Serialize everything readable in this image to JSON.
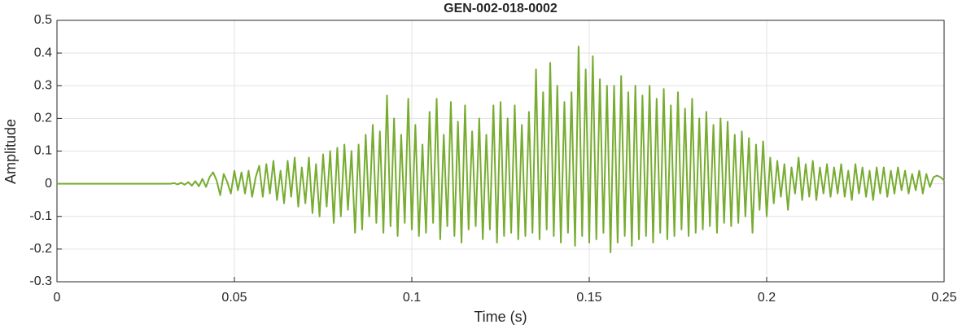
{
  "chart_data": {
    "type": "line",
    "title": "GEN-002-018-0002",
    "xlabel": "Time (s)",
    "ylabel": "Amplitude",
    "x": [
      0,
      0.001,
      0.002,
      0.003,
      0.004,
      0.005,
      0.006,
      0.007,
      0.008,
      0.009,
      0.01,
      0.011,
      0.012,
      0.013,
      0.014,
      0.015,
      0.016,
      0.017,
      0.018,
      0.019,
      0.02,
      0.021,
      0.022,
      0.023,
      0.024,
      0.025,
      0.026,
      0.027,
      0.028,
      0.029,
      0.03,
      0.031,
      0.032,
      0.033,
      0.034,
      0.035,
      0.036,
      0.037,
      0.038,
      0.039,
      0.04,
      0.041,
      0.042,
      0.043,
      0.044,
      0.045,
      0.046,
      0.047,
      0.048,
      0.049,
      0.05,
      0.051,
      0.052,
      0.053,
      0.054,
      0.055,
      0.056,
      0.057,
      0.058,
      0.059,
      0.06,
      0.061,
      0.062,
      0.063,
      0.064,
      0.065,
      0.066,
      0.067,
      0.068,
      0.069,
      0.07,
      0.071,
      0.072,
      0.073,
      0.074,
      0.075,
      0.076,
      0.077,
      0.078,
      0.079,
      0.08,
      0.081,
      0.082,
      0.083,
      0.084,
      0.085,
      0.086,
      0.087,
      0.088,
      0.089,
      0.09,
      0.091,
      0.092,
      0.093,
      0.094,
      0.095,
      0.096,
      0.097,
      0.098,
      0.099,
      0.1,
      0.101,
      0.102,
      0.103,
      0.104,
      0.105,
      0.106,
      0.107,
      0.108,
      0.109,
      0.11,
      0.111,
      0.112,
      0.113,
      0.114,
      0.115,
      0.116,
      0.117,
      0.118,
      0.119,
      0.12,
      0.121,
      0.122,
      0.123,
      0.124,
      0.125,
      0.126,
      0.127,
      0.128,
      0.129,
      0.13,
      0.131,
      0.132,
      0.133,
      0.134,
      0.135,
      0.136,
      0.137,
      0.138,
      0.139,
      0.14,
      0.141,
      0.142,
      0.143,
      0.144,
      0.145,
      0.146,
      0.147,
      0.148,
      0.149,
      0.15,
      0.151,
      0.152,
      0.153,
      0.154,
      0.155,
      0.156,
      0.157,
      0.158,
      0.159,
      0.16,
      0.161,
      0.162,
      0.163,
      0.164,
      0.165,
      0.166,
      0.167,
      0.168,
      0.169,
      0.17,
      0.171,
      0.172,
      0.173,
      0.174,
      0.175,
      0.176,
      0.177,
      0.178,
      0.179,
      0.18,
      0.181,
      0.182,
      0.183,
      0.184,
      0.185,
      0.186,
      0.187,
      0.188,
      0.189,
      0.19,
      0.191,
      0.192,
      0.193,
      0.194,
      0.195,
      0.196,
      0.197,
      0.198,
      0.199,
      0.2,
      0.201,
      0.202,
      0.203,
      0.204,
      0.205,
      0.206,
      0.207,
      0.208,
      0.209,
      0.21,
      0.211,
      0.212,
      0.213,
      0.214,
      0.215,
      0.216,
      0.217,
      0.218,
      0.219,
      0.22,
      0.221,
      0.222,
      0.223,
      0.224,
      0.225,
      0.226,
      0.227,
      0.228,
      0.229,
      0.23,
      0.231,
      0.232,
      0.233,
      0.234,
      0.235,
      0.236,
      0.237,
      0.238,
      0.239,
      0.24,
      0.241,
      0.242,
      0.243,
      0.244,
      0.245,
      0.246,
      0.247,
      0.248,
      0.249,
      0.25
    ],
    "series": [
      {
        "name": "Amplitude",
        "color": "#77ac30",
        "values": [
          0,
          0,
          0,
          0,
          0,
          0,
          0,
          0,
          0,
          0,
          0,
          0,
          0,
          0,
          0,
          0,
          0,
          0,
          0,
          0,
          0,
          0,
          0,
          0,
          0,
          0,
          0,
          0,
          0,
          0,
          0,
          0,
          0,
          0.002,
          -0.002,
          0.003,
          -0.003,
          0.005,
          -0.006,
          0.008,
          -0.008,
          0.015,
          -0.01,
          0.02,
          0.035,
          0.01,
          -0.035,
          0.03,
          0.005,
          -0.03,
          0.04,
          -0.02,
          0.035,
          -0.03,
          0.04,
          -0.04,
          0.02,
          0.055,
          -0.04,
          0.06,
          -0.03,
          0.07,
          -0.05,
          0.04,
          -0.06,
          0.07,
          -0.04,
          0.08,
          -0.07,
          0.05,
          -0.06,
          0.08,
          -0.09,
          0.06,
          -0.1,
          0.09,
          -0.07,
          0.1,
          -0.12,
          0.11,
          -0.1,
          0.12,
          -0.08,
          0.1,
          -0.15,
          0.12,
          -0.14,
          0.15,
          -0.1,
          0.18,
          -0.12,
          0.16,
          -0.15,
          0.27,
          -0.13,
          0.2,
          -0.16,
          0.15,
          -0.12,
          0.26,
          -0.14,
          0.18,
          -0.16,
          0.12,
          -0.15,
          0.22,
          -0.12,
          0.26,
          -0.17,
          0.15,
          -0.13,
          0.25,
          -0.16,
          0.19,
          -0.18,
          0.24,
          -0.14,
          0.16,
          -0.13,
          0.2,
          -0.17,
          0.15,
          -0.14,
          0.24,
          -0.18,
          0.25,
          -0.16,
          0.2,
          -0.15,
          0.24,
          -0.17,
          0.18,
          -0.16,
          0.22,
          -0.15,
          0.35,
          -0.17,
          0.28,
          -0.14,
          0.37,
          -0.16,
          0.3,
          -0.18,
          0.25,
          -0.15,
          0.28,
          -0.19,
          0.42,
          -0.16,
          0.35,
          -0.18,
          0.39,
          -0.17,
          0.32,
          -0.15,
          0.3,
          -0.21,
          0.3,
          -0.18,
          0.33,
          -0.16,
          0.28,
          -0.19,
          0.3,
          -0.17,
          0.27,
          -0.16,
          0.3,
          -0.18,
          0.26,
          -0.15,
          0.29,
          -0.17,
          0.24,
          -0.16,
          0.28,
          -0.14,
          0.23,
          -0.16,
          0.26,
          -0.15,
          0.2,
          -0.14,
          0.22,
          -0.13,
          0.18,
          -0.15,
          0.2,
          -0.12,
          0.19,
          -0.13,
          0.15,
          -0.12,
          0.16,
          -0.1,
          0.14,
          -0.15,
          0.12,
          -0.08,
          0.13,
          -0.1,
          0.08,
          -0.06,
          0.07,
          -0.04,
          0.06,
          -0.08,
          0.05,
          -0.03,
          0.08,
          -0.05,
          0.06,
          -0.04,
          0.07,
          -0.05,
          0.05,
          -0.03,
          0.06,
          -0.04,
          0.05,
          -0.03,
          0.06,
          -0.04,
          0.04,
          -0.05,
          0.06,
          -0.03,
          0.05,
          -0.04,
          0.04,
          -0.05,
          0.05,
          -0.03,
          0.05,
          -0.04,
          0.04,
          -0.03,
          0.05,
          -0.02,
          0.04,
          -0.03,
          0.03,
          -0.02,
          0.04,
          -0.03,
          0.03,
          -0.01,
          0.02,
          0.025,
          0.02,
          0.01
        ]
      }
    ],
    "xlim": [
      0,
      0.25
    ],
    "xticks": [
      0,
      0.05,
      0.1,
      0.15,
      0.2,
      0.25
    ],
    "ylim": [
      -0.3,
      0.5
    ],
    "yticks": [
      -0.3,
      -0.2,
      -0.1,
      0,
      0.1,
      0.2,
      0.3,
      0.4,
      0.5
    ],
    "grid": true
  }
}
